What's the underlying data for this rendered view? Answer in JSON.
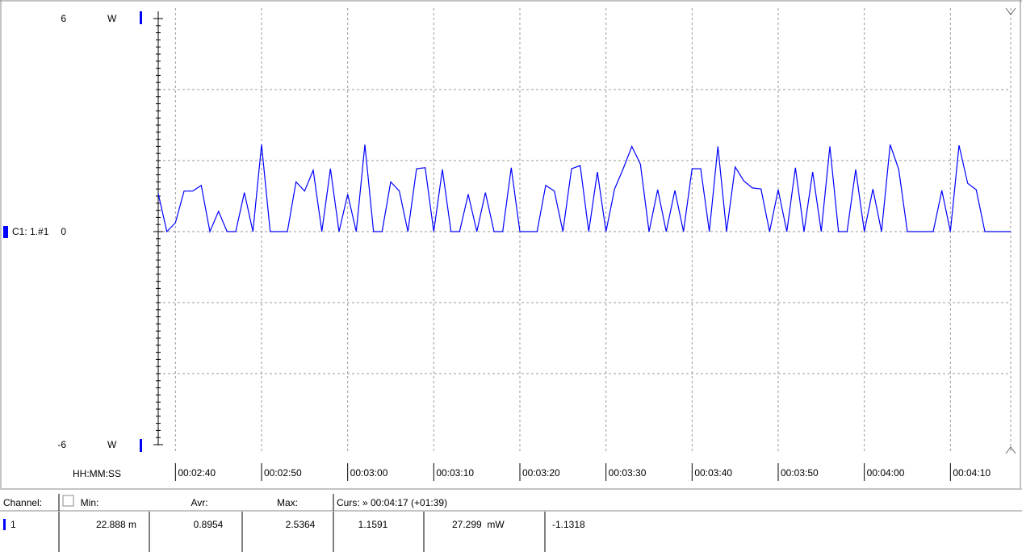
{
  "chart_data": {
    "type": "line",
    "y_unit": "W",
    "x_label": "HH:MM:SS",
    "xlim": [
      158,
      257
    ],
    "xticks": [
      {
        "value": 160,
        "label": "00:02:40"
      },
      {
        "value": 170,
        "label": "00:02:50"
      },
      {
        "value": 180,
        "label": "00:03:00"
      },
      {
        "value": 190,
        "label": "00:03:10"
      },
      {
        "value": 200,
        "label": "00:03:20"
      },
      {
        "value": 210,
        "label": "00:03:30"
      },
      {
        "value": 220,
        "label": "00:03:40"
      },
      {
        "value": 230,
        "label": "00:03:50"
      },
      {
        "value": 240,
        "label": "00:04:00"
      },
      {
        "value": 250,
        "label": "00:04:10"
      }
    ],
    "ylim": [
      -6,
      6
    ],
    "yticks": [
      -6,
      0,
      6
    ],
    "ygrid": [
      -4,
      -2,
      2,
      4
    ],
    "grid": true,
    "x": [
      158,
      159,
      160,
      161,
      162,
      163,
      164,
      165,
      166,
      167,
      168,
      169,
      170,
      171,
      172,
      173,
      174,
      175,
      176,
      177,
      178,
      179,
      180,
      181,
      182,
      183,
      184,
      185,
      186,
      187,
      188,
      189,
      190,
      191,
      192,
      193,
      194,
      195,
      196,
      197,
      198,
      199,
      200,
      201,
      202,
      203,
      204,
      205,
      206,
      207,
      208,
      209,
      210,
      211,
      212,
      213,
      214,
      215,
      216,
      217,
      218,
      219,
      220,
      221,
      222,
      223,
      224,
      225,
      226,
      227,
      228,
      229,
      230,
      231,
      232,
      233,
      234,
      235,
      236,
      237,
      238,
      239,
      240,
      241,
      242,
      243,
      244,
      245,
      246,
      247,
      248,
      249,
      250,
      251,
      252,
      253,
      254,
      255,
      256,
      257
    ],
    "series": [
      {
        "name": "C1: 1.#1",
        "color": "#0000ff",
        "values": [
          1.07,
          0,
          0.25,
          1.14,
          1.14,
          1.3,
          0,
          0.57,
          0,
          0,
          1.1,
          0,
          2.45,
          0,
          0,
          0,
          1.4,
          1.14,
          1.73,
          0,
          1.77,
          0,
          1.05,
          0,
          2.45,
          0,
          0,
          1.4,
          1.14,
          0,
          1.77,
          1.8,
          0,
          1.75,
          0,
          0,
          1.05,
          0,
          1.1,
          0,
          0,
          1.8,
          0,
          0,
          0,
          1.3,
          1.14,
          0,
          1.77,
          1.86,
          0,
          1.68,
          0,
          1.2,
          1.77,
          2.4,
          1.9,
          0,
          1.18,
          0,
          1.16,
          0,
          1.77,
          1.77,
          0,
          2.4,
          0,
          1.82,
          1.43,
          1.23,
          1.2,
          0,
          1.18,
          0,
          1.8,
          0,
          1.68,
          0,
          2.4,
          0,
          0,
          1.75,
          0,
          1.2,
          0,
          2.45,
          1.75,
          0,
          0,
          0,
          0,
          1.16,
          0,
          2.43,
          1.36,
          1.18,
          0,
          0,
          0,
          0
        ]
      }
    ]
  },
  "table": {
    "header": [
      "Channel:",
      "Min:",
      "Avr:",
      "Max:",
      "Curs: » 00:04:17 (+01:39)"
    ],
    "rows": [
      [
        "1",
        "22.888 m",
        "0.8954",
        "2.5364",
        "1.1591",
        "27.299  mW",
        "-1.1318"
      ]
    ]
  }
}
